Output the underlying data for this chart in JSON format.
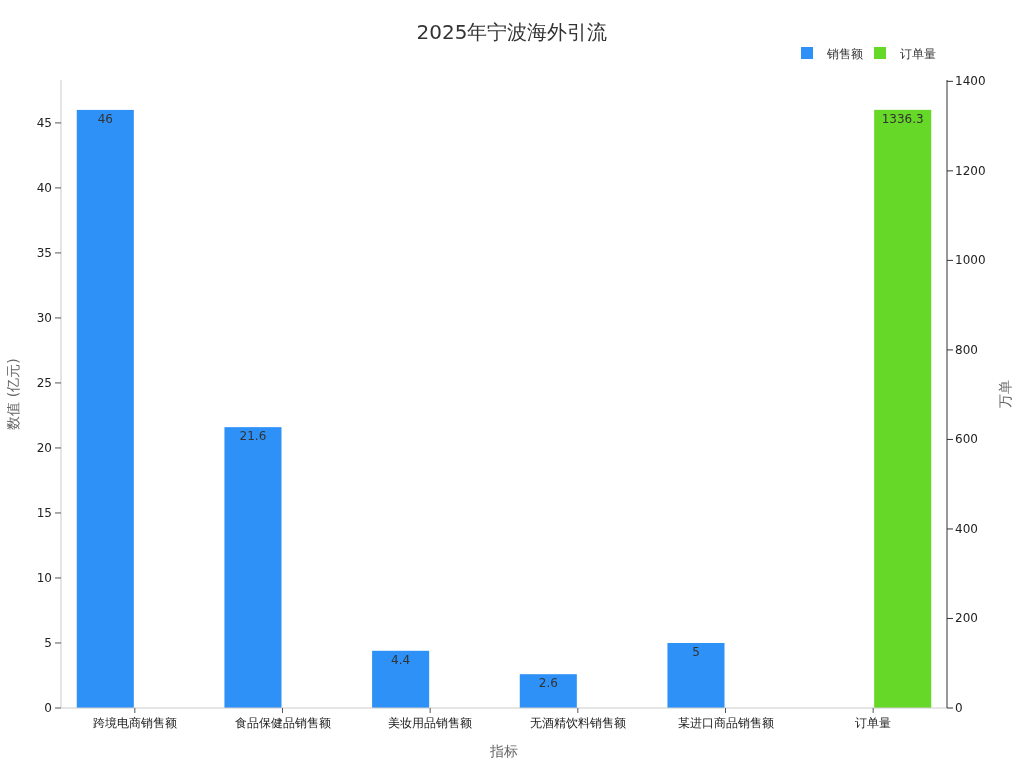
{
  "chart_data": {
    "type": "bar",
    "title": "2025年宁波海外引流",
    "xlabel": "指标",
    "ylabel": "数值 (亿元)",
    "y2label": "万单",
    "categories": [
      "跨境电商销售额",
      "食品保健品销售额",
      "美妆用品销售额",
      "无酒精饮料销售额",
      "某进口商品销售额",
      "订单量"
    ],
    "series": [
      {
        "name": "销售额",
        "color": "#2e91f7",
        "values": [
          46,
          21.6,
          4.4,
          2.6,
          5,
          null
        ]
      },
      {
        "name": "订单量",
        "color": "#66d827",
        "axis": "y2",
        "values": [
          null,
          null,
          null,
          null,
          null,
          1336.3
        ]
      }
    ],
    "ylim": [
      0,
      48.3
    ],
    "yticks": [
      0,
      5,
      10,
      15,
      20,
      25,
      30,
      35,
      40,
      45
    ],
    "y2lim": [
      0,
      1403
    ],
    "y2ticks": [
      0,
      200,
      400,
      600,
      800,
      1000,
      1200,
      1400
    ],
    "data_labels": true,
    "legend": "top right",
    "grid": false
  }
}
